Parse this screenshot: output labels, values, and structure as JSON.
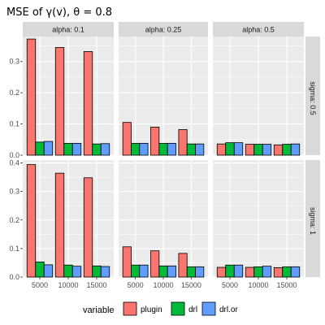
{
  "chart_data": {
    "type": "bar",
    "title": "MSE of γ(v), θ = 0.8",
    "categories": [
      "5000",
      "10000",
      "15000"
    ],
    "column_facets": [
      "alpha: 0.1",
      "alpha: 0.25",
      "alpha: 0.5"
    ],
    "row_facets": [
      "sigma: 0.5",
      "sigma: 1"
    ],
    "series": [
      {
        "name": "plugin",
        "color": "#F8766D"
      },
      {
        "name": "drl",
        "color": "#00BA38"
      },
      {
        "name": "drl.or",
        "color": "#619CFF"
      }
    ],
    "row_yaxes": [
      {
        "ylim": [
          0,
          0.38
        ],
        "ticks": [
          0.0,
          0.1,
          0.2,
          0.3
        ],
        "tick_labels": [
          "0.0",
          "0.1",
          "0.2",
          "0.3"
        ]
      },
      {
        "ylim": [
          0,
          0.41
        ],
        "ticks": [
          0.0,
          0.1,
          0.2,
          0.3,
          0.4
        ],
        "tick_labels": [
          "0.0",
          "0.1",
          "0.2",
          "0.3",
          "0.4"
        ]
      }
    ],
    "values": {
      "sigma: 0.5": {
        "alpha: 0.1": {
          "plugin": [
            0.372,
            0.345,
            0.332
          ],
          "drl": [
            0.042,
            0.038,
            0.036
          ],
          "drl.or": [
            0.044,
            0.038,
            0.037
          ]
        },
        "alpha: 0.25": {
          "plugin": [
            0.105,
            0.09,
            0.082
          ],
          "drl": [
            0.038,
            0.038,
            0.036
          ],
          "drl.or": [
            0.038,
            0.038,
            0.036
          ]
        },
        "alpha: 0.5": {
          "plugin": [
            0.036,
            0.035,
            0.033
          ],
          "drl": [
            0.04,
            0.035,
            0.035
          ],
          "drl.or": [
            0.04,
            0.035,
            0.036
          ]
        }
      },
      "sigma: 1": {
        "alpha: 0.1": {
          "plugin": [
            0.394,
            0.364,
            0.348
          ],
          "drl": [
            0.053,
            0.042,
            0.039
          ],
          "drl.or": [
            0.043,
            0.038,
            0.037
          ]
        },
        "alpha: 0.25": {
          "plugin": [
            0.106,
            0.092,
            0.083
          ],
          "drl": [
            0.042,
            0.039,
            0.036
          ],
          "drl.or": [
            0.042,
            0.039,
            0.036
          ]
        },
        "alpha: 0.5": {
          "plugin": [
            0.034,
            0.034,
            0.033
          ],
          "drl": [
            0.042,
            0.036,
            0.036
          ],
          "drl.or": [
            0.042,
            0.038,
            0.036
          ]
        }
      }
    },
    "legend": {
      "title": "variable",
      "position": "bottom"
    },
    "grid": true,
    "panel_background": "#EBEBEB",
    "strip_background": "#D9D9D9"
  }
}
